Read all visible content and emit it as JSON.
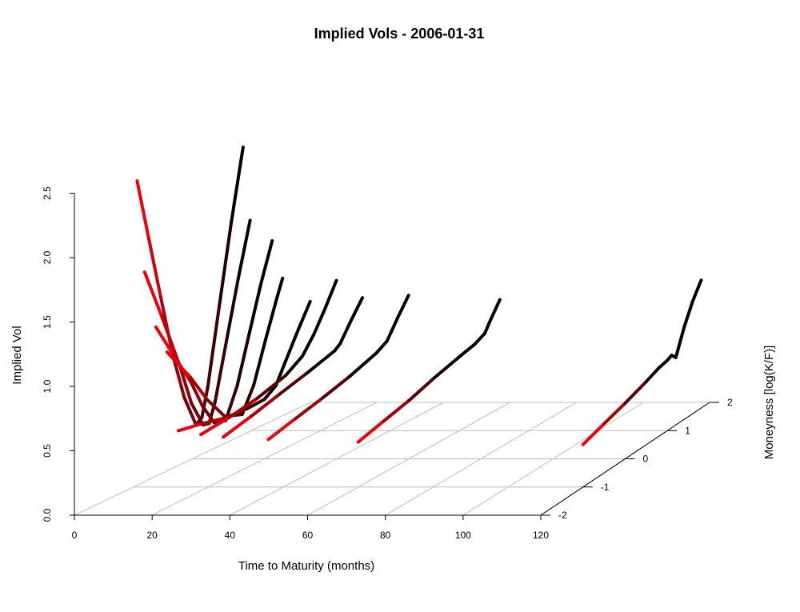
{
  "chart_data": {
    "type": "line",
    "title": "Implied Vols - 2006-01-31",
    "xlabel": "Time to Maturity (months)",
    "ylabel": "Implied Vol",
    "zlabel": "Moneyness [log(K/F)]",
    "xlim": [
      0,
      120
    ],
    "ylim": [
      0,
      2.5
    ],
    "zlim": [
      -2,
      2
    ],
    "x_ticks": [
      "0",
      "20",
      "40",
      "60",
      "80",
      "100",
      "120"
    ],
    "y_ticks": [
      "0.0",
      "0.5",
      "1.0",
      "1.5",
      "2.0",
      "2.5"
    ],
    "z_ticks": [
      "-2",
      "-1",
      "0",
      "1",
      "2"
    ],
    "colors": {
      "low_moneyness": "#e8000b",
      "high_moneyness": "#000000",
      "grid": "#bdbdbd"
    },
    "series": [
      {
        "maturity": 1,
        "points": [
          [
            -1.0,
            2.45
          ],
          [
            -0.8,
            1.95
          ],
          [
            -0.6,
            1.45
          ],
          [
            -0.4,
            0.95
          ],
          [
            -0.2,
            0.55
          ],
          [
            0.0,
            0.28
          ],
          [
            0.1,
            0.32
          ],
          [
            0.2,
            0.55
          ],
          [
            0.4,
            1.2
          ],
          [
            0.6,
            1.85
          ],
          [
            0.8,
            2.45
          ]
        ]
      },
      {
        "maturity": 3,
        "points": [
          [
            -1.0,
            1.72
          ],
          [
            -0.7,
            1.3
          ],
          [
            -0.4,
            0.85
          ],
          [
            -0.2,
            0.5
          ],
          [
            0.0,
            0.28
          ],
          [
            0.1,
            0.27
          ],
          [
            0.2,
            0.42
          ],
          [
            0.4,
            0.9
          ],
          [
            0.6,
            1.38
          ],
          [
            0.8,
            1.83
          ]
        ]
      },
      {
        "maturity": 6,
        "points": [
          [
            -1.0,
            1.28
          ],
          [
            -0.7,
            1.0
          ],
          [
            -0.4,
            0.72
          ],
          [
            -0.2,
            0.48
          ],
          [
            0.0,
            0.3
          ],
          [
            0.2,
            0.27
          ],
          [
            0.4,
            0.52
          ],
          [
            0.6,
            0.9
          ],
          [
            0.8,
            1.28
          ],
          [
            1.0,
            1.62
          ]
        ]
      },
      {
        "maturity": 9,
        "points": [
          [
            -1.0,
            1.08
          ],
          [
            -0.6,
            0.8
          ],
          [
            -0.3,
            0.55
          ],
          [
            0.0,
            0.35
          ],
          [
            0.3,
            0.3
          ],
          [
            0.5,
            0.5
          ],
          [
            0.7,
            0.83
          ],
          [
            0.9,
            1.15
          ],
          [
            1.0,
            1.3
          ]
        ]
      },
      {
        "maturity": 12,
        "points": [
          [
            -1.0,
            0.45
          ],
          [
            -0.6,
            0.42
          ],
          [
            -0.2,
            0.38
          ],
          [
            0.2,
            0.37
          ],
          [
            0.5,
            0.38
          ],
          [
            0.7,
            0.45
          ],
          [
            0.9,
            0.65
          ],
          [
            1.1,
            0.85
          ],
          [
            1.3,
            1.04
          ]
        ]
      },
      {
        "maturity": 18,
        "points": [
          [
            -1.0,
            0.42
          ],
          [
            -0.5,
            0.45
          ],
          [
            0.0,
            0.5
          ],
          [
            0.5,
            0.58
          ],
          [
            0.8,
            0.68
          ],
          [
            1.0,
            0.82
          ],
          [
            1.2,
            1.0
          ],
          [
            1.4,
            1.2
          ]
        ]
      },
      {
        "maturity": 24,
        "points": [
          [
            -1.0,
            0.4
          ],
          [
            -0.5,
            0.46
          ],
          [
            0.0,
            0.53
          ],
          [
            0.5,
            0.6
          ],
          [
            1.0,
            0.68
          ],
          [
            1.1,
            0.72
          ],
          [
            1.3,
            0.88
          ],
          [
            1.5,
            1.03
          ]
        ]
      },
      {
        "maturity": 36,
        "points": [
          [
            -1.0,
            0.38
          ],
          [
            -0.5,
            0.44
          ],
          [
            0.0,
            0.5
          ],
          [
            0.5,
            0.57
          ],
          [
            1.0,
            0.66
          ],
          [
            1.2,
            0.72
          ],
          [
            1.4,
            0.88
          ],
          [
            1.6,
            1.03
          ]
        ]
      },
      {
        "maturity": 60,
        "points": [
          [
            -1.0,
            0.36
          ],
          [
            -0.5,
            0.42
          ],
          [
            0.0,
            0.48
          ],
          [
            0.5,
            0.56
          ],
          [
            1.0,
            0.63
          ],
          [
            1.3,
            0.67
          ],
          [
            1.5,
            0.72
          ],
          [
            1.6,
            0.8
          ],
          [
            1.8,
            0.95
          ]
        ]
      },
      {
        "maturity": 120,
        "points": [
          [
            -1.0,
            0.34
          ],
          [
            -0.5,
            0.4
          ],
          [
            0.0,
            0.46
          ],
          [
            0.5,
            0.53
          ],
          [
            0.8,
            0.58
          ],
          [
            1.0,
            0.6
          ],
          [
            1.1,
            0.62
          ],
          [
            1.2,
            0.58
          ],
          [
            1.4,
            0.8
          ],
          [
            1.6,
            0.98
          ],
          [
            1.8,
            1.12
          ]
        ]
      }
    ]
  }
}
